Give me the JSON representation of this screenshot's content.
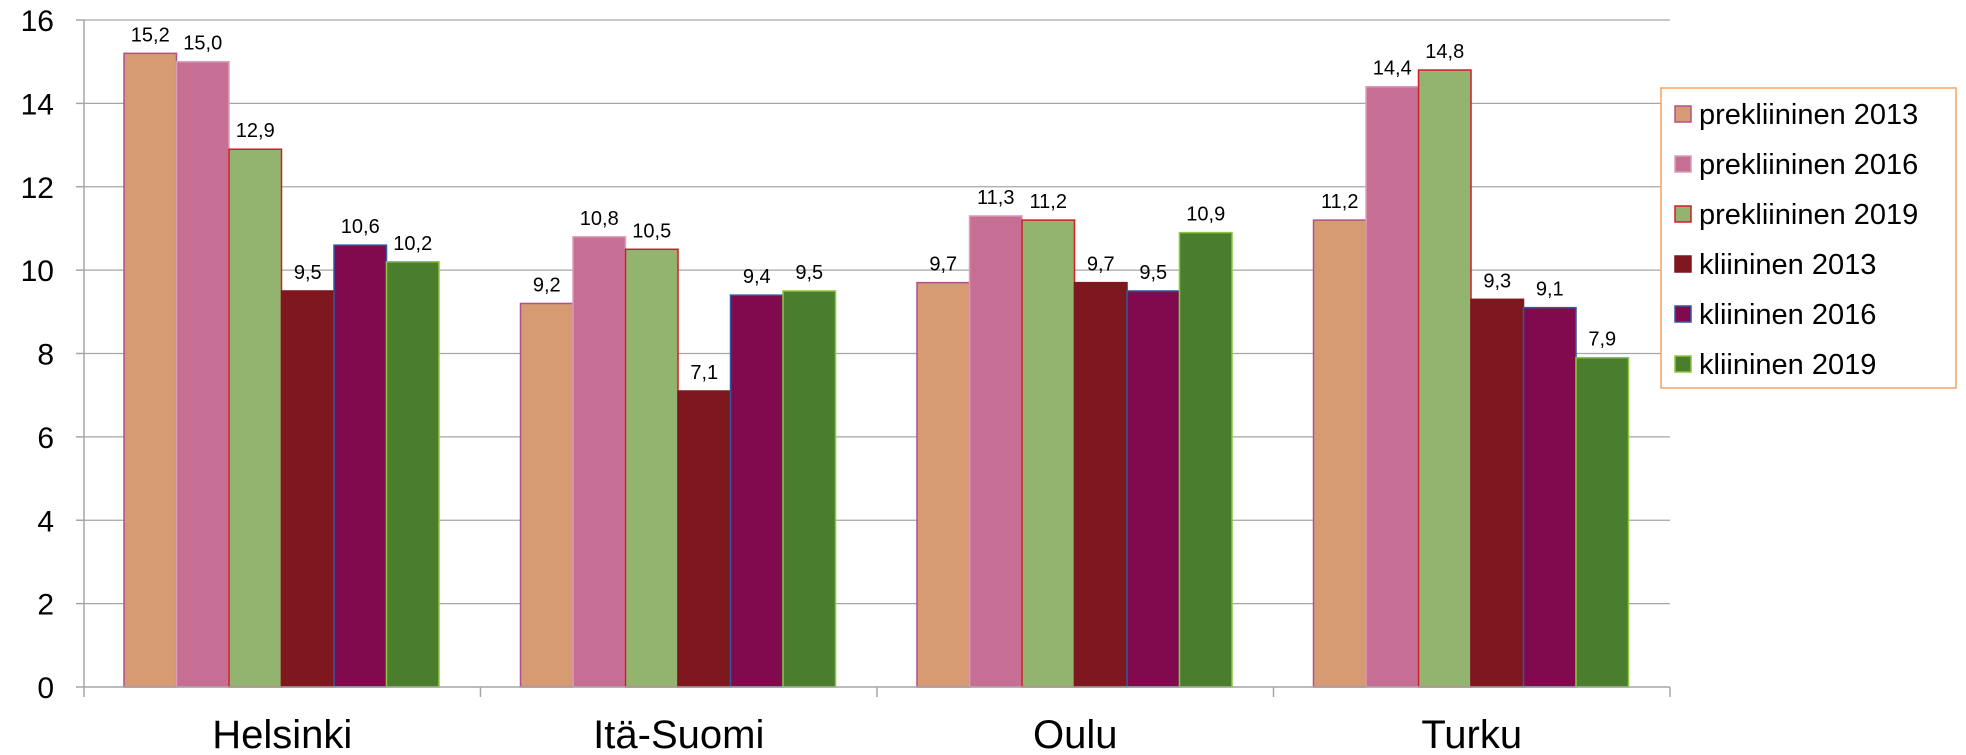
{
  "chart_data": {
    "type": "bar",
    "categories": [
      "Helsinki",
      "Itä-Suomi",
      "Oulu",
      "Turku"
    ],
    "ylim": [
      0,
      16
    ],
    "yticks": [
      "0",
      "2",
      "4",
      "6",
      "8",
      "10",
      "12",
      "14",
      "16"
    ],
    "grid": true,
    "legend_position": "right",
    "series": [
      {
        "name": "prekliininen 2013",
        "values": [
          15.2,
          9.2,
          9.7,
          11.2
        ],
        "labels": [
          "15,2",
          "9,2",
          "9,7",
          "11,2"
        ],
        "color": "#D79B74",
        "border": "#B0508C"
      },
      {
        "name": "prekliininen 2016",
        "values": [
          15.0,
          10.8,
          11.3,
          14.4
        ],
        "labels": [
          "15,0",
          "10,8",
          "11,3",
          "14,4"
        ],
        "color": "#C76E95",
        "border": "#D9A0B8"
      },
      {
        "name": "prekliininen 2019",
        "values": [
          12.9,
          10.5,
          11.2,
          14.8
        ],
        "labels": [
          "12,9",
          "10,5",
          "11,2",
          "14,8"
        ],
        "color": "#93B46F",
        "border": "#D01C2C"
      },
      {
        "name": "kliininen 2013",
        "values": [
          9.5,
          7.1,
          9.7,
          9.3
        ],
        "labels": [
          "9,5",
          "7,1",
          "9,7",
          "9,3"
        ],
        "color": "#7F171E",
        "border": "#7F171E"
      },
      {
        "name": "kliininen 2016",
        "values": [
          10.6,
          9.4,
          9.5,
          9.1
        ],
        "labels": [
          "10,6",
          "9,4",
          "9,5",
          "9,1"
        ],
        "color": "#810A4F",
        "border": "#2E5A9E"
      },
      {
        "name": "kliininen 2019",
        "values": [
          10.2,
          9.5,
          10.9,
          7.9
        ],
        "labels": [
          "10,2",
          "9,5",
          "10,9",
          "7,9"
        ],
        "color": "#4A7D2C",
        "border": "#8CC63E"
      }
    ],
    "legend_border_color": "#F4A460",
    "grid_color": "#A6A6A6",
    "axis_color": "#A6A6A6"
  }
}
